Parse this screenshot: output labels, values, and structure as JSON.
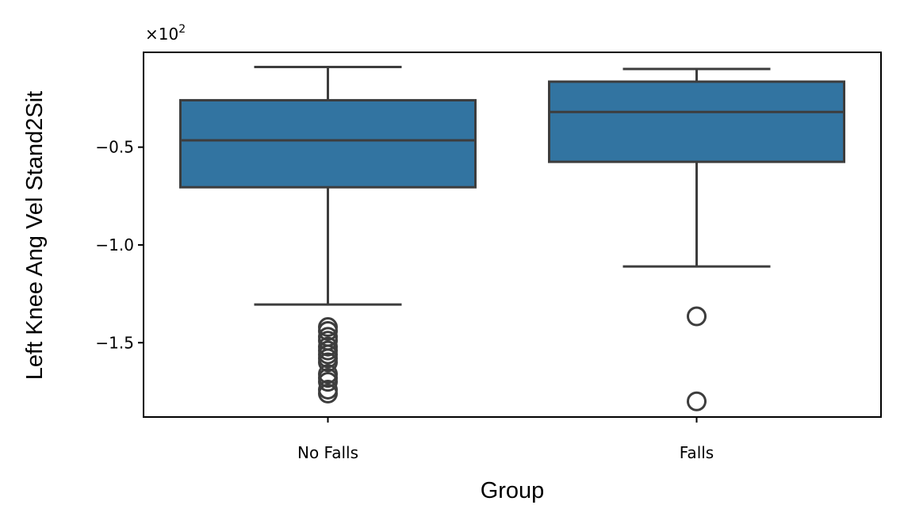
{
  "chart_data": {
    "type": "box",
    "xlabel": "Group",
    "ylabel": "Left Knee Ang Vel Stand2Sit",
    "y_offset_text": "×10",
    "y_offset_exponent": "2",
    "categories": [
      "No Falls",
      "Falls"
    ],
    "y_ticks": [
      {
        "value": -0.5,
        "label": "−0.5"
      },
      {
        "value": -1.0,
        "label": "−1.0"
      },
      {
        "value": -1.5,
        "label": "−1.5"
      }
    ],
    "ylim": [
      -1.88,
      -0.015
    ],
    "grid": false,
    "boxes": [
      {
        "category": "No Falls",
        "whisker_high": -0.09,
        "q3": -0.26,
        "median": -0.465,
        "q1": -0.705,
        "whisker_low": -1.305,
        "outliers": [
          -1.42,
          -1.44,
          -1.47,
          -1.49,
          -1.52,
          -1.54,
          -1.56,
          -1.58,
          -1.6,
          -1.66,
          -1.68,
          -1.7,
          -1.74,
          -1.76
        ]
      },
      {
        "category": "Falls",
        "whisker_high": -0.1,
        "q3": -0.165,
        "median": -0.32,
        "q1": -0.575,
        "whisker_low": -1.11,
        "outliers": [
          -1.365,
          -1.8
        ]
      }
    ],
    "colors": {
      "box_fill": "#3274a1",
      "line": "#3d3d3d",
      "axis": "#000000"
    }
  }
}
